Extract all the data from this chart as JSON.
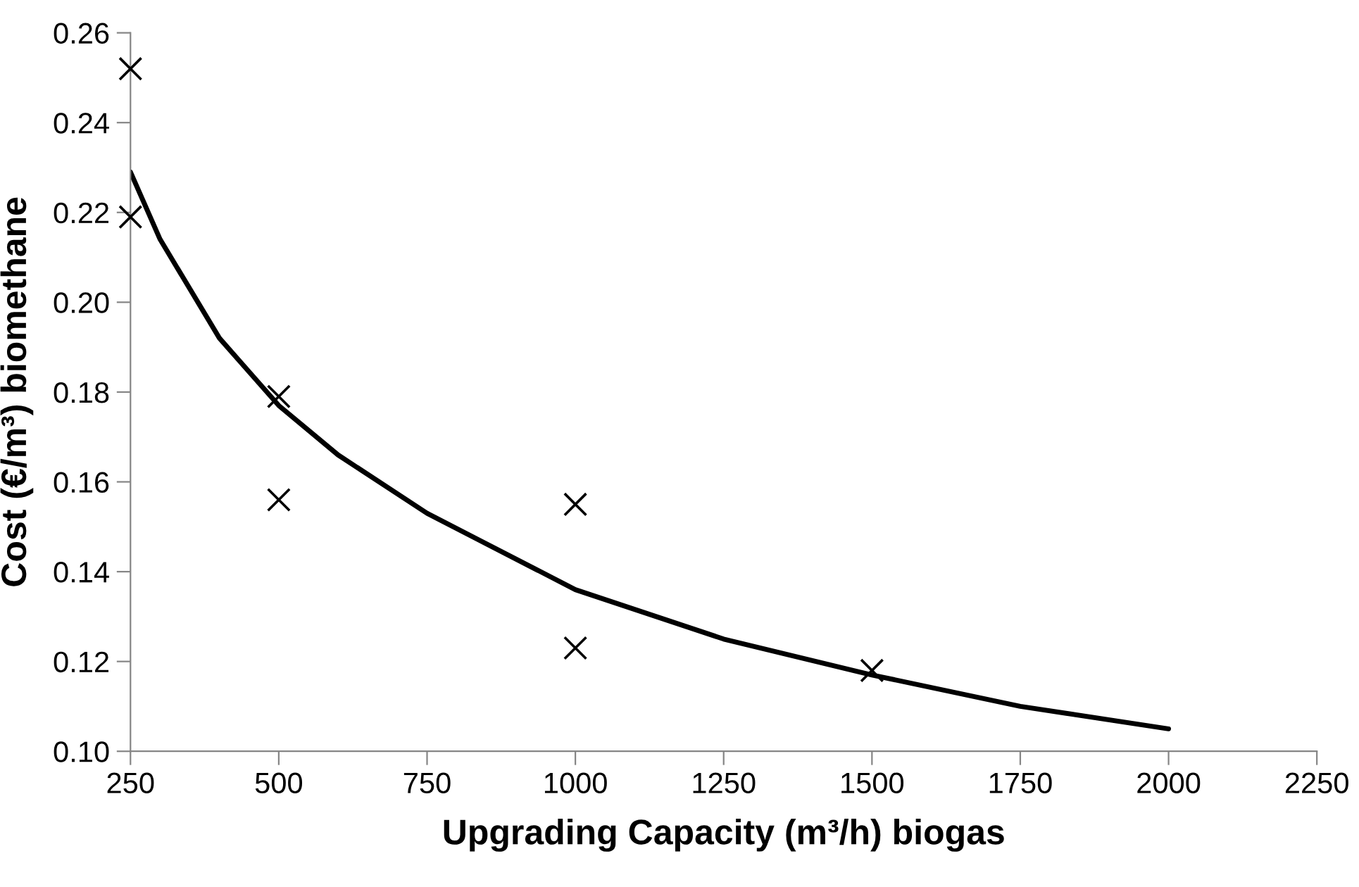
{
  "chart_data": {
    "type": "scatter",
    "xlabel": "Upgrading Capacity (m³/h) biogas",
    "ylabel": "Cost (€/m³) biomethane",
    "xlim": [
      250,
      2250
    ],
    "xticks": [
      250,
      500,
      750,
      1000,
      1250,
      1500,
      1750,
      2000,
      2250
    ],
    "ylim": [
      0.1,
      0.26
    ],
    "yticks": [
      {
        "value": 0.1,
        "label": "0.10"
      },
      {
        "value": 0.12,
        "label": "0.12"
      },
      {
        "value": 0.14,
        "label": "0.14"
      },
      {
        "value": 0.16,
        "label": "0.16"
      },
      {
        "value": 0.18,
        "label": "0.18"
      },
      {
        "value": 0.2,
        "label": "0.20"
      },
      {
        "value": 0.22,
        "label": "0.22"
      },
      {
        "value": 0.24,
        "label": "0.24"
      },
      {
        "value": 0.26,
        "label": "0.26"
      }
    ],
    "grid": false,
    "legend": false,
    "series": [
      {
        "color": "#000000",
        "marker": "cross",
        "x": [
          250,
          250,
          500,
          500,
          1000,
          1000,
          1500
        ],
        "values": [
          0.252,
          0.219,
          0.179,
          0.156,
          0.155,
          0.123,
          0.118
        ]
      },
      {
        "type": "line",
        "color": "#000000",
        "marker": "none",
        "line_style": "solid",
        "x": [
          250,
          300,
          400,
          500,
          600,
          750,
          1000,
          1250,
          1500,
          1750,
          2000
        ],
        "values": [
          0.229,
          0.214,
          0.192,
          0.177,
          0.166,
          0.153,
          0.136,
          0.125,
          0.117,
          0.11,
          0.105
        ]
      }
    ]
  }
}
